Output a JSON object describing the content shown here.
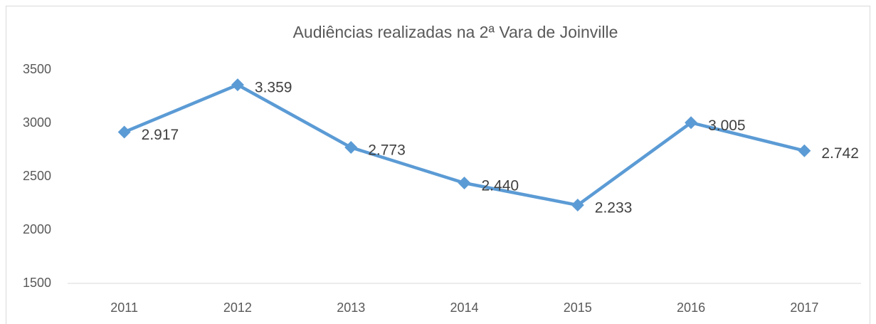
{
  "chart_data": {
    "type": "line",
    "title": "Audiências realizadas na 2ª Vara de Joinville",
    "categories": [
      "2011",
      "2012",
      "2013",
      "2014",
      "2015",
      "2016",
      "2017"
    ],
    "values": [
      2917,
      3359,
      2773,
      2440,
      2233,
      3005,
      2742
    ],
    "value_labels": [
      "2.917",
      "3.359",
      "2.773",
      "2.440",
      "2.233",
      "3.005",
      "2.742"
    ],
    "color": "#5b9bd5",
    "ylim": [
      1500,
      3500
    ],
    "yticks": [
      1500,
      2000,
      2500,
      3000,
      3500
    ],
    "grid": false
  }
}
